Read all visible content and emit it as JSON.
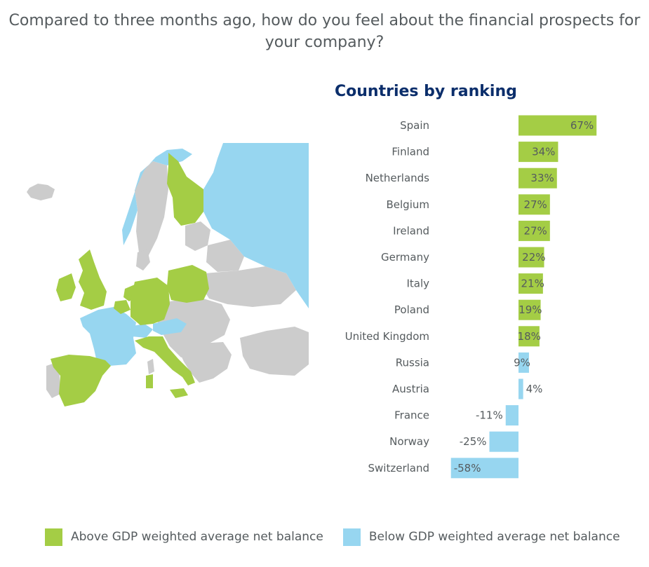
{
  "question": "Compared to three months ago, how do you feel about the financial prospects for your company?",
  "colors": {
    "above": "#a4cd45",
    "below": "#97d6f0",
    "neutral": "#cccccc"
  },
  "map": {
    "above_countries": [
      "Spain",
      "Finland",
      "Netherlands",
      "Belgium",
      "Ireland",
      "Germany",
      "Italy",
      "Poland",
      "United Kingdom"
    ],
    "below_countries": [
      "Russia",
      "Austria",
      "France",
      "Norway",
      "Switzerland"
    ]
  },
  "legend": {
    "above_label": "Above GDP weighted average net balance",
    "below_label": "Below GDP weighted average net balance"
  },
  "chart_data": {
    "type": "bar",
    "orientation": "horizontal",
    "title": "Countries by ranking",
    "categories": [
      "Spain",
      "Finland",
      "Netherlands",
      "Belgium",
      "Ireland",
      "Germany",
      "Italy",
      "Poland",
      "United Kingdom",
      "Russia",
      "Austria",
      "France",
      "Norway",
      "Switzerland"
    ],
    "values": [
      67,
      34,
      33,
      27,
      27,
      22,
      21,
      19,
      18,
      9,
      4,
      -11,
      -25,
      -58
    ],
    "value_labels": [
      "67%",
      "34%",
      "33%",
      "27%",
      "27%",
      "22%",
      "21%",
      "19%",
      "18%",
      "9%",
      "4%",
      "-11%",
      "-25%",
      "-58%"
    ],
    "groups": [
      "above",
      "above",
      "above",
      "above",
      "above",
      "above",
      "above",
      "above",
      "above",
      "below",
      "below",
      "below",
      "below",
      "below"
    ],
    "xlim": [
      -58,
      67
    ],
    "grid": false,
    "legend_position": "bottom"
  }
}
